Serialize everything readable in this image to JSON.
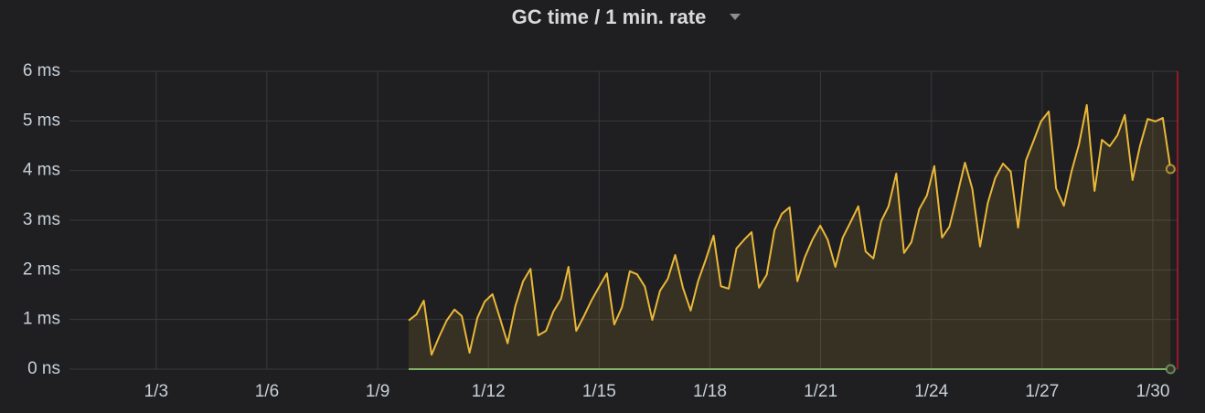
{
  "chart_data": {
    "type": "line",
    "title": "GC time / 1 min. rate",
    "x": [
      9.84,
      10.05,
      10.25,
      10.46,
      10.67,
      10.87,
      11.08,
      11.28,
      11.49,
      11.7,
      11.9,
      12.11,
      12.32,
      12.52,
      12.73,
      12.94,
      13.14,
      13.35,
      13.56,
      13.76,
      13.97,
      14.17,
      14.38,
      14.59,
      14.79,
      15.0,
      15.21,
      15.41,
      15.62,
      15.83,
      16.03,
      16.24,
      16.44,
      16.65,
      16.86,
      17.06,
      17.27,
      17.48,
      17.68,
      17.89,
      18.1,
      18.3,
      18.51,
      18.72,
      18.92,
      19.13,
      19.33,
      19.54,
      19.75,
      19.95,
      20.16,
      20.37,
      20.57,
      20.78,
      20.99,
      21.19,
      21.4,
      21.6,
      21.81,
      22.02,
      22.22,
      22.43,
      22.64,
      22.84,
      23.05,
      23.26,
      23.46,
      23.67,
      23.88,
      24.08,
      24.29,
      24.49,
      24.7,
      24.91,
      25.11,
      25.32,
      25.53,
      25.73,
      25.94,
      26.15,
      26.35,
      26.56,
      26.76,
      26.97,
      27.18,
      27.38,
      27.59,
      27.8,
      28.0,
      28.21,
      28.42,
      28.62,
      28.83,
      29.04,
      29.24,
      29.45,
      29.65,
      29.86,
      30.07,
      30.27,
      30.48
    ],
    "series": [
      {
        "color": "#eab839",
        "fill": true,
        "values": [
          0.98,
          1.1,
          1.38,
          0.29,
          0.66,
          0.98,
          1.2,
          1.07,
          0.33,
          1.03,
          1.36,
          1.51,
          1.01,
          0.52,
          1.27,
          1.77,
          2.02,
          0.68,
          0.77,
          1.16,
          1.42,
          2.06,
          0.77,
          1.07,
          1.38,
          1.66,
          1.93,
          0.9,
          1.25,
          1.97,
          1.91,
          1.66,
          0.99,
          1.58,
          1.82,
          2.3,
          1.64,
          1.18,
          1.77,
          2.21,
          2.69,
          1.67,
          1.62,
          2.43,
          2.6,
          2.76,
          1.64,
          1.9,
          2.8,
          3.13,
          3.26,
          1.77,
          2.25,
          2.61,
          2.89,
          2.61,
          2.06,
          2.65,
          2.96,
          3.28,
          2.37,
          2.23,
          2.98,
          3.28,
          3.94,
          2.34,
          2.56,
          3.22,
          3.5,
          4.09,
          2.65,
          2.87,
          3.5,
          4.16,
          3.63,
          2.47,
          3.35,
          3.85,
          4.14,
          3.98,
          2.85,
          4.2,
          4.58,
          4.99,
          5.19,
          3.64,
          3.29,
          3.99,
          4.53,
          5.32,
          3.59,
          4.62,
          4.49,
          4.71,
          5.12,
          3.81,
          4.49,
          5.04,
          4.99,
          5.06,
          4.03
        ]
      },
      {
        "color": "#7eb26d",
        "fill": false,
        "values": [
          0,
          0,
          0,
          0,
          0,
          0,
          0,
          0,
          0,
          0,
          0,
          0,
          0,
          0,
          0,
          0,
          0,
          0,
          0,
          0,
          0,
          0,
          0,
          0,
          0,
          0,
          0,
          0,
          0,
          0,
          0,
          0,
          0,
          0,
          0,
          0,
          0,
          0,
          0,
          0,
          0,
          0,
          0,
          0,
          0,
          0,
          0,
          0,
          0,
          0,
          0,
          0,
          0,
          0,
          0,
          0,
          0,
          0,
          0,
          0,
          0,
          0,
          0,
          0,
          0,
          0,
          0,
          0,
          0,
          0,
          0,
          0,
          0,
          0,
          0,
          0,
          0,
          0,
          0,
          0,
          0,
          0,
          0,
          0,
          0,
          0,
          0,
          0,
          0,
          0,
          0,
          0,
          0,
          0,
          0,
          0,
          0,
          0,
          0,
          0,
          0
        ]
      }
    ],
    "xlim": [
      1.37,
      30.67
    ],
    "xticks": [
      {
        "value": 3,
        "label": "1/3"
      },
      {
        "value": 6,
        "label": "1/6"
      },
      {
        "value": 9,
        "label": "1/9"
      },
      {
        "value": 12,
        "label": "1/12"
      },
      {
        "value": 15,
        "label": "1/15"
      },
      {
        "value": 18,
        "label": "1/18"
      },
      {
        "value": 21,
        "label": "1/21"
      },
      {
        "value": 24,
        "label": "1/24"
      },
      {
        "value": 27,
        "label": "1/27"
      },
      {
        "value": 30,
        "label": "1/30"
      }
    ],
    "ylim": [
      0,
      6
    ],
    "yticks": [
      {
        "value": 0,
        "label": "0 ns"
      },
      {
        "value": 1,
        "label": "1 ms"
      },
      {
        "value": 2,
        "label": "2 ms"
      },
      {
        "value": 3,
        "label": "3 ms"
      },
      {
        "value": 4,
        "label": "4 ms"
      },
      {
        "value": 5,
        "label": "5 ms"
      },
      {
        "value": 6,
        "label": "6 ms"
      }
    ],
    "grid": true
  }
}
